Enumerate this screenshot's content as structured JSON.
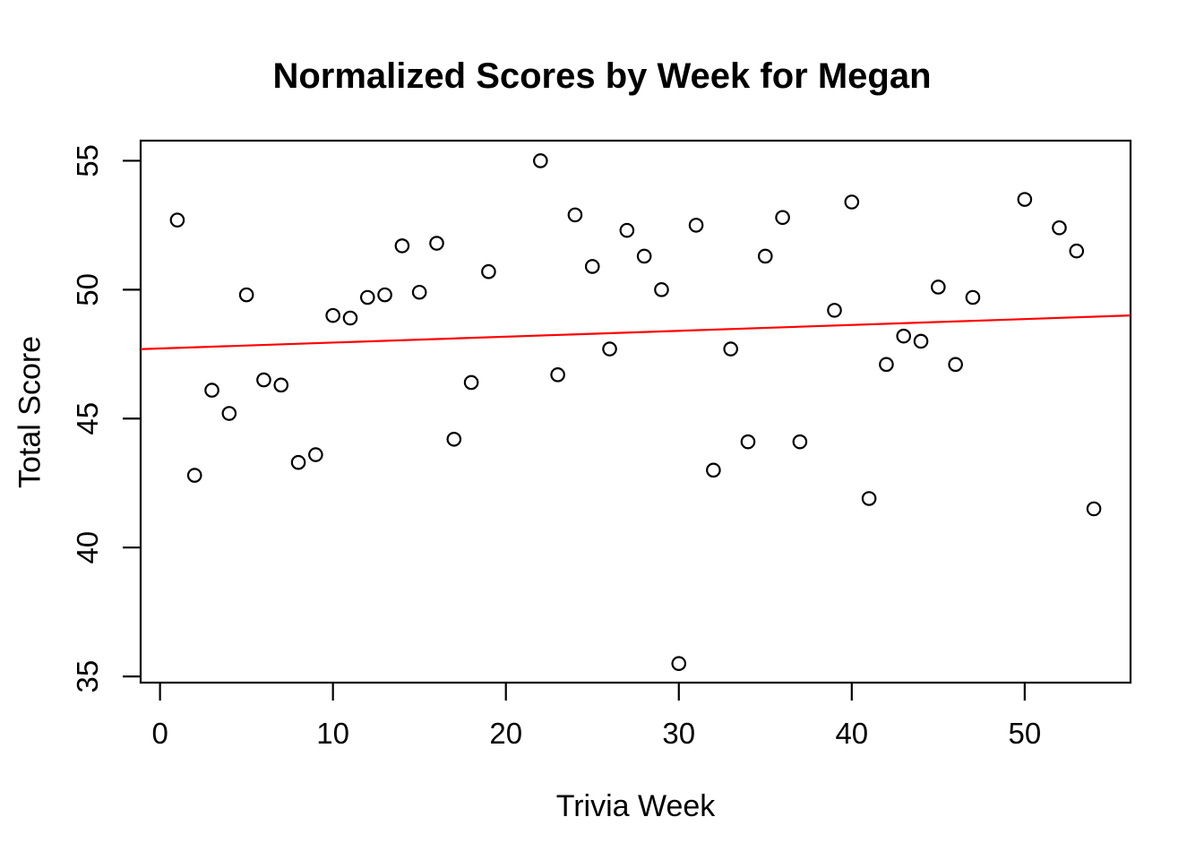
{
  "chart_data": {
    "type": "scatter",
    "title": "Normalized Scores by Week for Megan",
    "xlabel": "Trivia Week",
    "ylabel": "Total Score",
    "x_ticks": [
      0,
      10,
      20,
      30,
      40,
      50
    ],
    "y_ticks": [
      35,
      40,
      45,
      50,
      55
    ],
    "xlim": [
      -1.12,
      56.12
    ],
    "ylim": [
      34.76,
      55.78
    ],
    "grid": false,
    "legend": null,
    "point_style": {
      "shape": "open-circle",
      "color": "#000000"
    },
    "line_color": "#ff0000",
    "axis_color": "#000000",
    "background_color": "#ffffff",
    "points": [
      [
        1,
        52.7
      ],
      [
        2,
        42.8
      ],
      [
        3,
        46.1
      ],
      [
        4,
        45.2
      ],
      [
        5,
        49.8
      ],
      [
        6,
        46.5
      ],
      [
        7,
        46.3
      ],
      [
        8,
        43.3
      ],
      [
        9,
        43.6
      ],
      [
        10,
        49.0
      ],
      [
        11,
        48.9
      ],
      [
        12,
        49.7
      ],
      [
        13,
        49.8
      ],
      [
        14,
        51.7
      ],
      [
        15,
        49.9
      ],
      [
        16,
        51.8
      ],
      [
        17,
        44.2
      ],
      [
        18,
        46.4
      ],
      [
        19,
        50.7
      ],
      [
        22,
        55.0
      ],
      [
        23,
        46.7
      ],
      [
        24,
        52.9
      ],
      [
        25,
        50.9
      ],
      [
        26,
        47.7
      ],
      [
        27,
        52.3
      ],
      [
        28,
        51.3
      ],
      [
        29,
        50.0
      ],
      [
        30,
        35.5
      ],
      [
        31,
        52.5
      ],
      [
        32,
        43.0
      ],
      [
        33,
        47.7
      ],
      [
        34,
        44.1
      ],
      [
        35,
        51.3
      ],
      [
        36,
        52.8
      ],
      [
        37,
        44.1
      ],
      [
        39,
        49.2
      ],
      [
        40,
        53.4
      ],
      [
        41,
        41.9
      ],
      [
        42,
        47.1
      ],
      [
        43,
        48.2
      ],
      [
        44,
        48.0
      ],
      [
        45,
        50.1
      ],
      [
        46,
        47.1
      ],
      [
        47,
        49.7
      ],
      [
        50,
        53.5
      ],
      [
        52,
        52.4
      ],
      [
        53,
        51.5
      ],
      [
        54,
        41.5
      ]
    ],
    "trend_line": {
      "type": "linear-regression",
      "intercept": 47.72,
      "slope": 0.0228,
      "x_start": -1.12,
      "x_end": 56.12
    }
  }
}
